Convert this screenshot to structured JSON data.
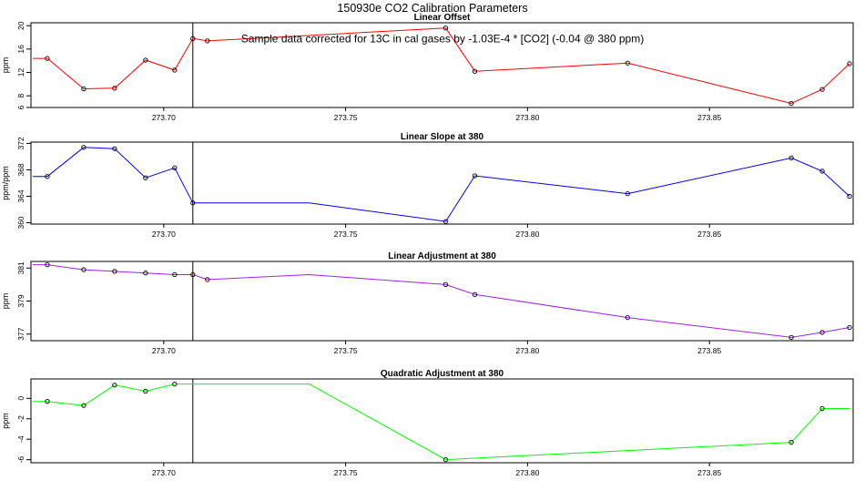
{
  "title": "150930e   CO2 Calibration Parameters",
  "annotation": "Sample data corrected for 13C in cal gases by -1.03E-4 * [CO2] (-0.04 @ 380 ppm)",
  "vline_x": 273.708,
  "chart_data": [
    {
      "type": "line",
      "title": "Linear Offset",
      "ylabel": "ppm",
      "color": "#ff0000",
      "xlim": [
        273.6635,
        273.8895
      ],
      "ylim": [
        6,
        20.5
      ],
      "yticks": [
        "6",
        "8",
        "12",
        "16",
        "20"
      ],
      "ytick_values": [
        6,
        8,
        12,
        16,
        20
      ],
      "xticks": [
        "273.70",
        "273.75",
        "273.80",
        "273.85"
      ],
      "xtick_values": [
        273.7,
        273.75,
        273.8,
        273.85
      ],
      "series": [
        {
          "x": [
            273.664,
            273.668,
            273.678,
            273.6865,
            273.695,
            273.703,
            273.708,
            273.712,
            273.7775,
            273.7855,
            273.8275,
            273.8725,
            273.881,
            273.8885
          ],
          "y": [
            14.4,
            14.4,
            9.2,
            9.3,
            14.1,
            12.4,
            17.8,
            17.4,
            19.6,
            12.2,
            13.6,
            6.7,
            9.1,
            13.5
          ],
          "markers": [
            false,
            true,
            true,
            true,
            true,
            true,
            true,
            true,
            true,
            true,
            true,
            true,
            true,
            true
          ]
        }
      ]
    },
    {
      "type": "line",
      "title": "Linear Slope at 380",
      "ylabel": "ppm/ppm",
      "color": "#0000ff",
      "xlim": [
        273.6635,
        273.8895
      ],
      "ylim": [
        359.8,
        372.2
      ],
      "yticks": [
        "360",
        "364",
        "368",
        "372"
      ],
      "ytick_values": [
        360,
        364,
        368,
        372
      ],
      "xticks": [
        "273.70",
        "273.75",
        "273.80",
        "273.85"
      ],
      "xtick_values": [
        273.7,
        273.75,
        273.8,
        273.85
      ],
      "series": [
        {
          "x": [
            273.664,
            273.668,
            273.678,
            273.6865,
            273.695,
            273.703,
            273.708,
            273.74,
            273.7775,
            273.7855,
            273.8275,
            273.8725,
            273.881,
            273.8885
          ],
          "y": [
            367.0,
            367.0,
            371.4,
            371.2,
            366.8,
            368.3,
            363.0,
            363.0,
            360.2,
            367.1,
            364.4,
            369.8,
            367.8,
            364.0
          ],
          "markers": [
            false,
            true,
            true,
            true,
            true,
            true,
            true,
            false,
            true,
            true,
            true,
            true,
            true,
            true
          ]
        }
      ]
    },
    {
      "type": "line",
      "title": "Linear Adjustment at 380",
      "ylabel": "ppm",
      "color": "#a020f0",
      "xlim": [
        273.6635,
        273.8895
      ],
      "ylim": [
        376.6,
        381.4
      ],
      "yticks": [
        "377",
        "379",
        "381"
      ],
      "ytick_values": [
        377,
        379,
        381
      ],
      "xticks": [
        "273.70",
        "273.75",
        "273.80",
        "273.85"
      ],
      "xtick_values": [
        273.7,
        273.75,
        273.8,
        273.85
      ],
      "series": [
        {
          "x": [
            273.664,
            273.668,
            273.678,
            273.6865,
            273.695,
            273.703,
            273.708,
            273.712,
            273.74,
            273.7775,
            273.7855,
            273.8275,
            273.8725,
            273.881,
            273.8885
          ],
          "y": [
            381.2,
            381.2,
            380.9,
            380.8,
            380.7,
            380.6,
            380.6,
            380.3,
            380.6,
            380.0,
            379.4,
            378.0,
            376.8,
            377.1,
            377.4
          ],
          "markers": [
            false,
            true,
            true,
            true,
            true,
            true,
            true,
            true,
            false,
            true,
            true,
            true,
            true,
            true,
            true
          ]
        }
      ]
    },
    {
      "type": "line",
      "title": "Quadratic Adjustment at 380",
      "ylabel": "ppm",
      "color": "#00ff00",
      "xlim": [
        273.6635,
        273.8895
      ],
      "ylim": [
        -6.3,
        1.9
      ],
      "yticks": [
        "-6",
        "-4",
        "-2",
        "0"
      ],
      "ytick_values": [
        -6,
        -4,
        -2,
        0
      ],
      "xticks": [
        "273.70",
        "273.75",
        "273.80",
        "273.85"
      ],
      "xtick_values": [
        273.7,
        273.75,
        273.8,
        273.85
      ],
      "series": [
        {
          "x": [
            273.664,
            273.668,
            273.678,
            273.6865,
            273.695,
            273.703,
            273.74,
            273.7775,
            273.8725,
            273.881,
            273.8885
          ],
          "y": [
            -0.3,
            -0.3,
            -0.7,
            1.3,
            0.7,
            1.4,
            1.4,
            -6.0,
            -4.3,
            -1.0,
            -1.0
          ],
          "markers": [
            false,
            true,
            true,
            true,
            true,
            true,
            false,
            true,
            true,
            true,
            false
          ]
        }
      ]
    }
  ]
}
